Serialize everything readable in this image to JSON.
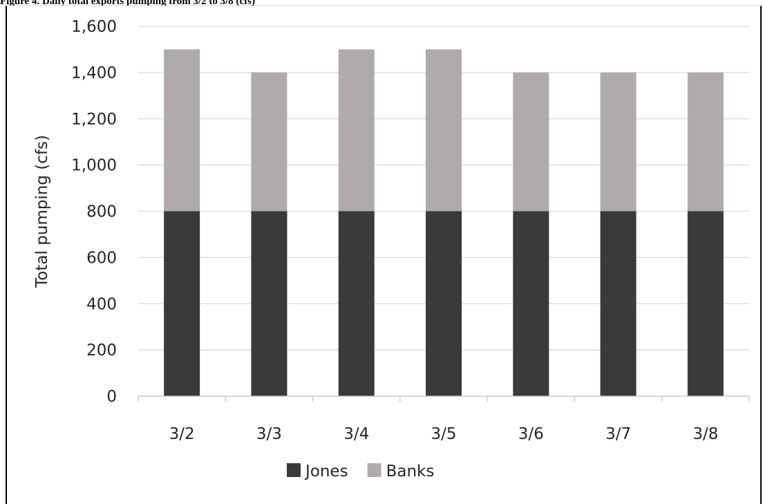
{
  "caption": "Figure 4. Daily total exports pumping from 3/2 to 3/8 (cfs)",
  "chart_data": {
    "type": "bar",
    "stacked": true,
    "categories": [
      "3/2",
      "3/3",
      "3/4",
      "3/5",
      "3/6",
      "3/7",
      "3/8"
    ],
    "series": [
      {
        "name": "Jones",
        "color": "#3a3a38",
        "values": [
          800,
          800,
          800,
          800,
          800,
          800,
          800
        ]
      },
      {
        "name": "Banks",
        "color": "#afabab",
        "values": [
          700,
          600,
          700,
          700,
          600,
          600,
          600
        ]
      }
    ],
    "title": "",
    "xlabel": "",
    "ylabel": "Total pumping (cfs)",
    "ylim": [
      0,
      1600
    ],
    "yticks": [
      0,
      200,
      400,
      600,
      800,
      1000,
      1200,
      1400,
      1600
    ],
    "ytick_labels": [
      "0",
      "200",
      "400",
      "600",
      "800",
      "1,000",
      "1,200",
      "1,400",
      "1,600"
    ],
    "grid": true,
    "legend_position": "bottom"
  }
}
